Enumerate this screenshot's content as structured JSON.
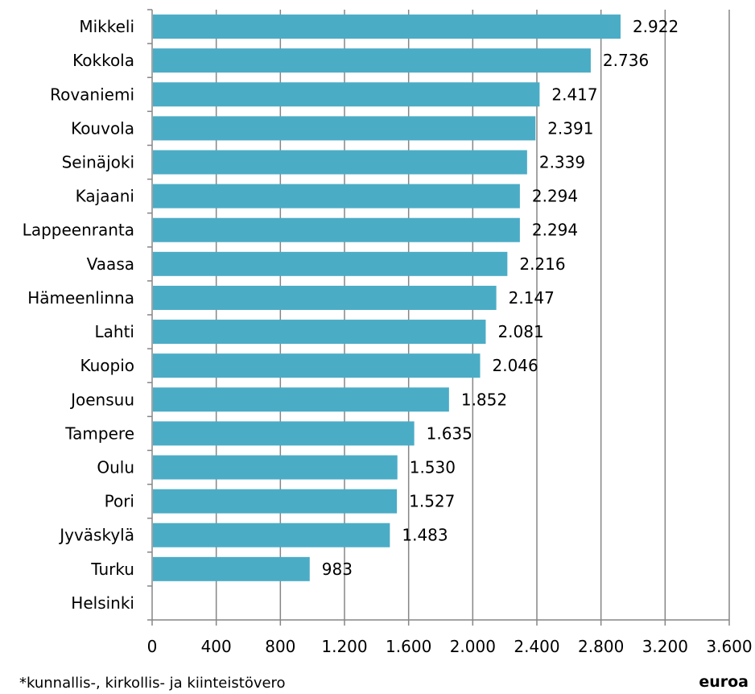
{
  "chart_data": {
    "type": "bar",
    "orientation": "horizontal",
    "categories": [
      "Mikkeli",
      "Kokkola",
      "Rovaniemi",
      "Kouvola",
      "Seinäjoki",
      "Kajaani",
      "Lappeenranta",
      "Vaasa",
      "Hämeenlinna",
      "Lahti",
      "Kuopio",
      "Joensuu",
      "Tampere",
      "Oulu",
      "Pori",
      "Jyväskylä",
      "Turku",
      "Helsinki"
    ],
    "values": [
      2922,
      2736,
      2417,
      2391,
      2339,
      2294,
      2294,
      2216,
      2147,
      2081,
      2046,
      1852,
      1635,
      1530,
      1527,
      1483,
      983,
      null
    ],
    "value_labels": [
      "2.922",
      "2.736",
      "2.417",
      "2.391",
      "2.339",
      "2.294",
      "2.294",
      "2.216",
      "2.147",
      "2.081",
      "2.046",
      "1.852",
      "1.635",
      "1.530",
      "1.527",
      "1.483",
      "983",
      ""
    ],
    "xlim": [
      0,
      3600
    ],
    "xticks": [
      0,
      400,
      800,
      1200,
      1600,
      2000,
      2400,
      2800,
      3200,
      3600
    ],
    "xtick_labels": [
      "0",
      "400",
      "800",
      "1.200",
      "1.600",
      "2.000",
      "2.400",
      "2.800",
      "3.200",
      "3.600"
    ],
    "xlabel": "euroa",
    "footnote": "*kunnallis-, kirkollis- ja kiinteistövero",
    "grid": "vertical",
    "bar_color": "#4BACC6",
    "grid_color": "#868686"
  }
}
